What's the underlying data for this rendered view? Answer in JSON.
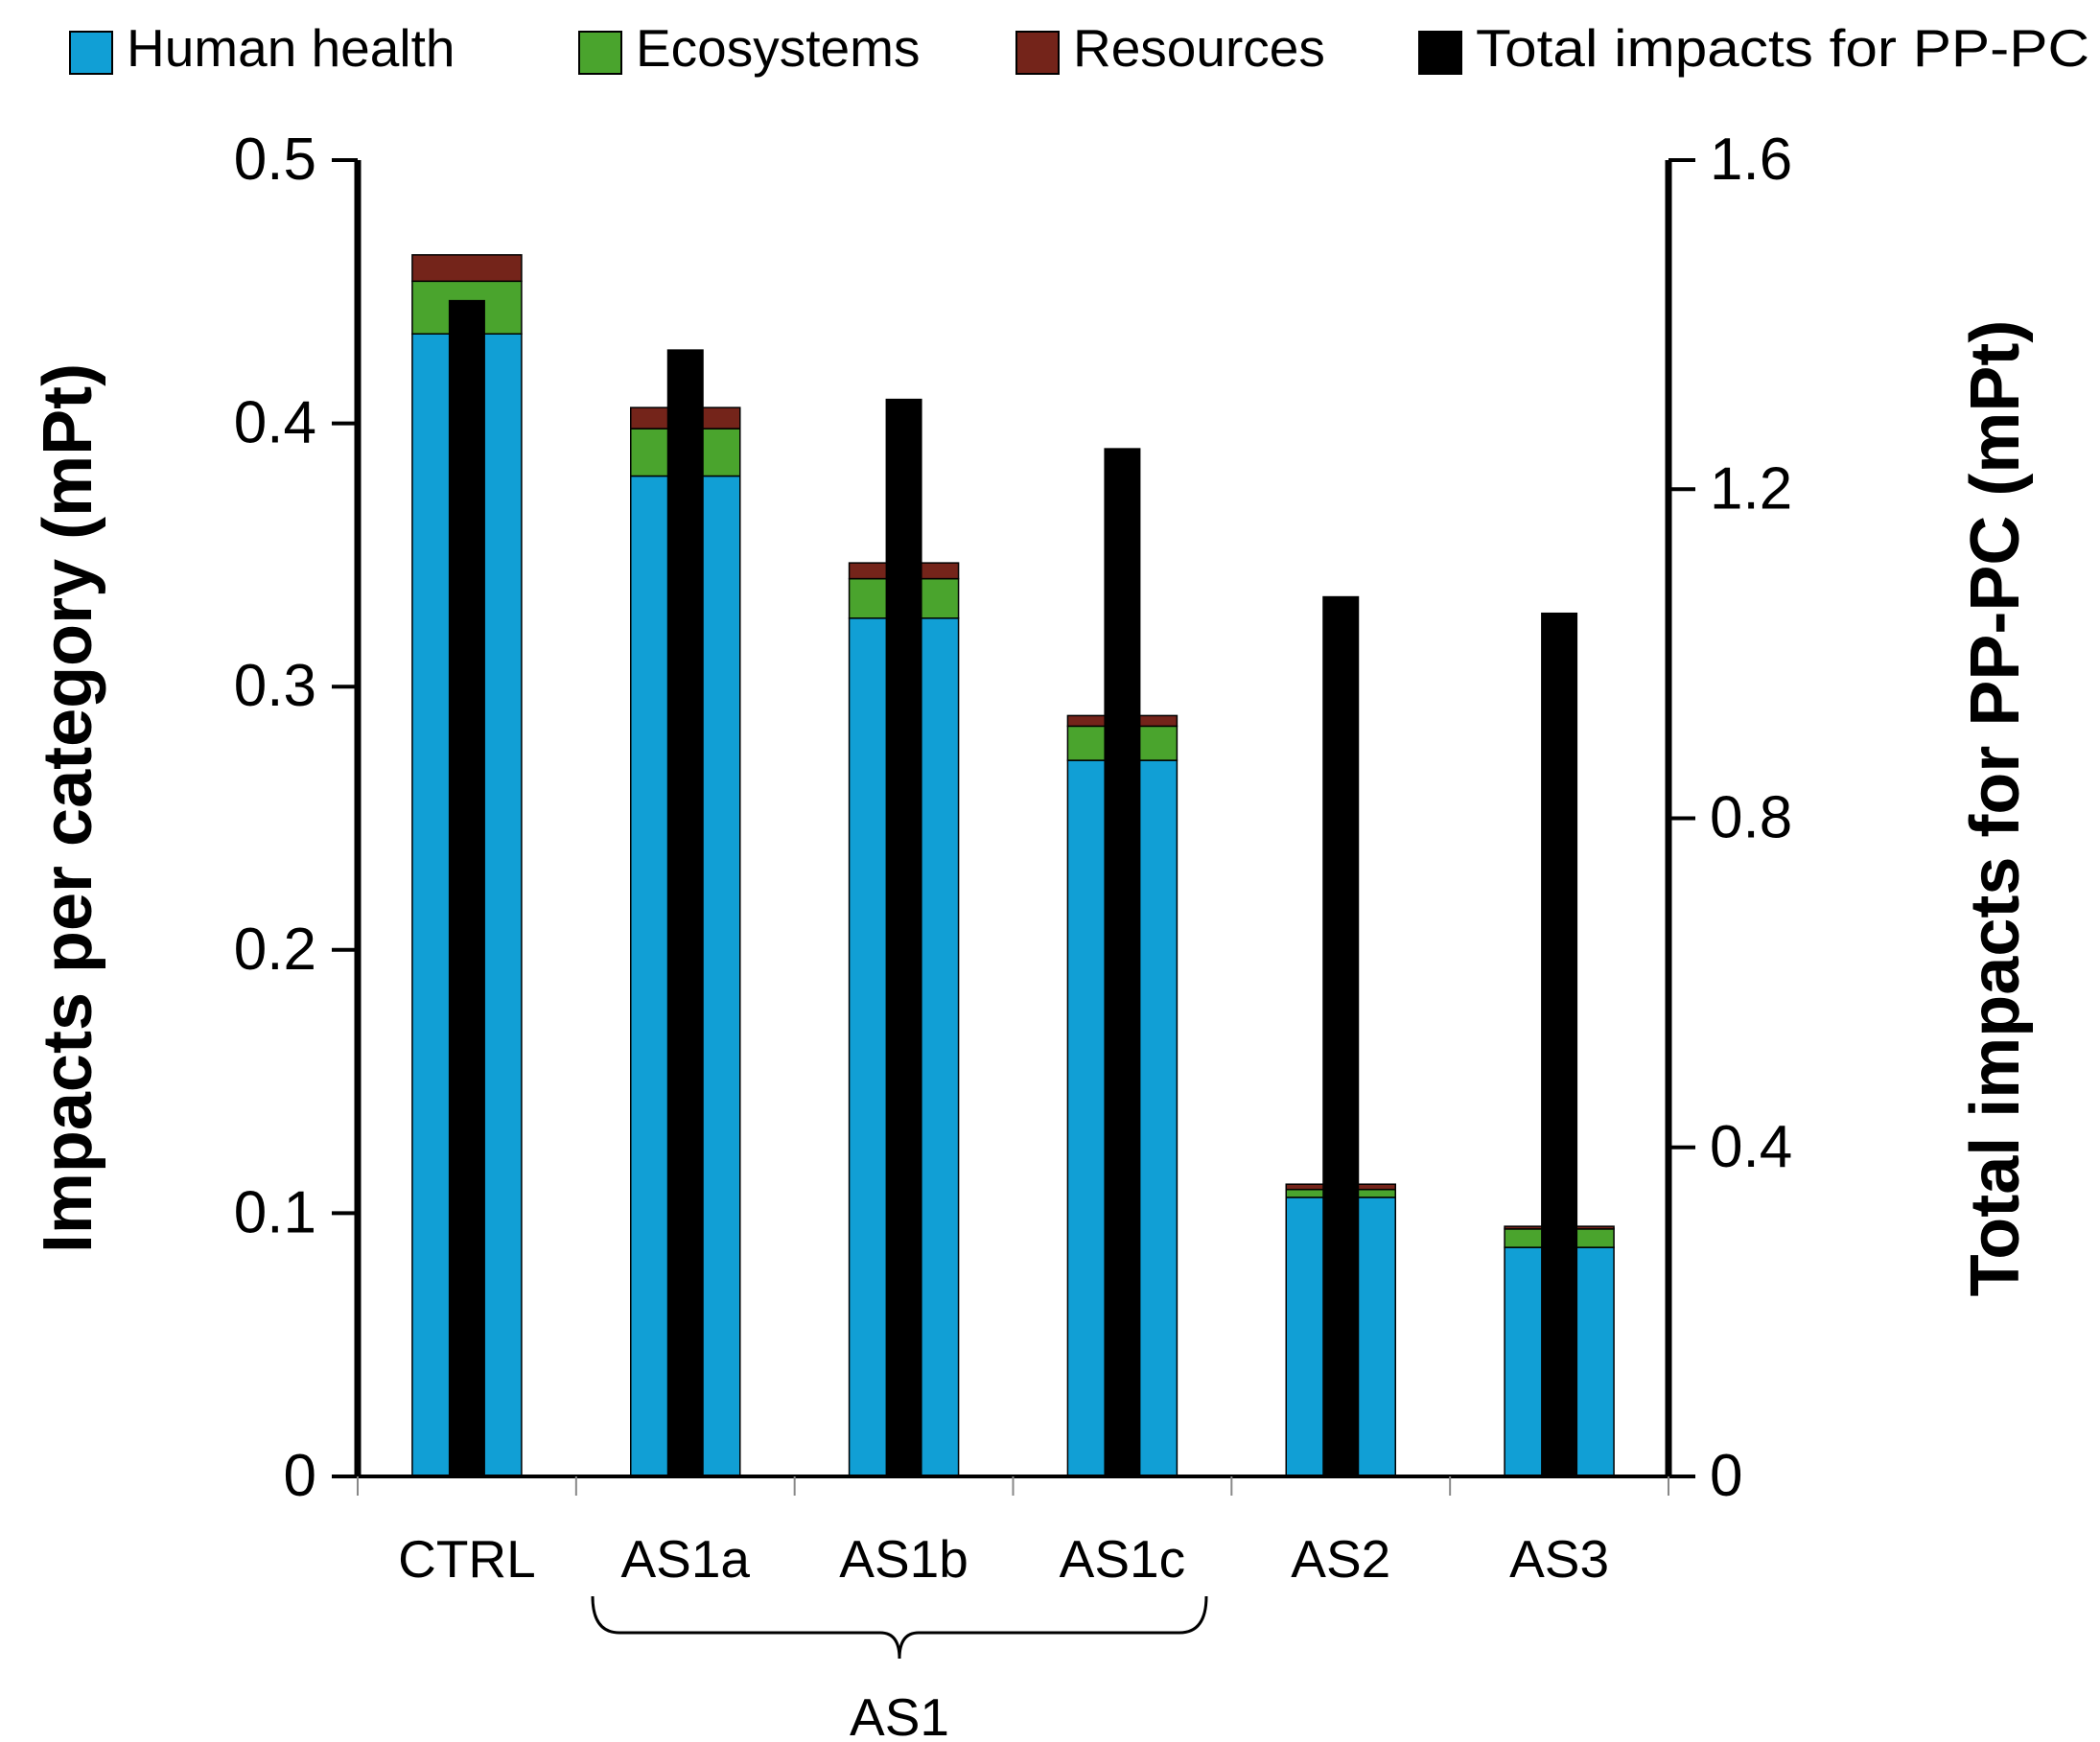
{
  "chart_data": {
    "type": "bar",
    "subtype": "stacked-bar with secondary-axis total bars",
    "categories": [
      "CTRL",
      "AS1a",
      "AS1b",
      "AS1c",
      "AS2",
      "AS3"
    ],
    "series": [
      {
        "name": "Human health",
        "axis": "left",
        "color": "#119fd5",
        "values": [
          0.434,
          0.38,
          0.326,
          0.272,
          0.106,
          0.087
        ]
      },
      {
        "name": "Ecosystems",
        "axis": "left",
        "color": "#4aa42d",
        "values": [
          0.02,
          0.018,
          0.015,
          0.013,
          0.003,
          0.007
        ]
      },
      {
        "name": "Resources",
        "axis": "left",
        "color": "#74241a",
        "values": [
          0.01,
          0.008,
          0.006,
          0.004,
          0.002,
          0.001
        ]
      },
      {
        "name": "Total impacts for PP-PC",
        "axis": "right",
        "color": "#000000",
        "values": [
          1.43,
          1.37,
          1.31,
          1.25,
          1.07,
          1.05
        ]
      }
    ],
    "ylabel": "Impacts per category (mPt)",
    "y2label": "Total impacts for PP-PC (mPt)",
    "ylim": [
      0,
      0.5
    ],
    "y2lim": [
      0,
      1.6
    ],
    "yticks": [
      "0",
      "0.1",
      "0.2",
      "0.3",
      "0.4",
      "0.5"
    ],
    "y2ticks": [
      "0",
      "0.4",
      "0.8",
      "1.2",
      "1.6"
    ],
    "group_annotation": {
      "label": "AS1",
      "spans": [
        "AS1a",
        "AS1b",
        "AS1c"
      ]
    },
    "legend_position": "top",
    "grid": false
  }
}
